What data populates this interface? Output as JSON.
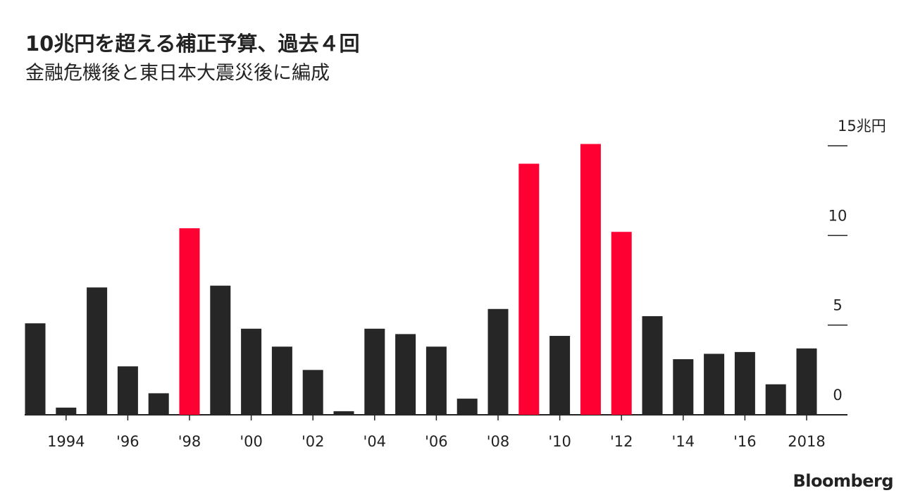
{
  "chart_data": {
    "type": "bar",
    "title": "10兆円を超える補正予算、過去４回",
    "subtitle": "金融危機後と東日本大震災後に編成",
    "categories": [
      null,
      "1994",
      null,
      "'96",
      null,
      "'98",
      null,
      "'00",
      null,
      "'02",
      null,
      "'04",
      null,
      "'06",
      null,
      "'08",
      null,
      "'10",
      null,
      "'12",
      null,
      "'14",
      null,
      "'16",
      null,
      "2018"
    ],
    "values": [
      5.1,
      0.4,
      7.1,
      2.7,
      1.2,
      10.4,
      7.2,
      4.8,
      3.8,
      2.5,
      0.2,
      4.8,
      4.5,
      3.8,
      0.9,
      5.9,
      14.0,
      4.4,
      15.1,
      10.2,
      5.5,
      3.1,
      3.4,
      3.5,
      1.7,
      3.7
    ],
    "colors": [
      "#262626",
      "#262626",
      "#262626",
      "#262626",
      "#262626",
      "#ff0033",
      "#262626",
      "#262626",
      "#262626",
      "#262626",
      "#262626",
      "#262626",
      "#262626",
      "#262626",
      "#262626",
      "#262626",
      "#ff0033",
      "#262626",
      "#ff0033",
      "#ff0033",
      "#262626",
      "#262626",
      "#262626",
      "#262626",
      "#262626",
      "#262626"
    ],
    "ylim": [
      0,
      15
    ],
    "yticks": [
      0,
      5,
      10,
      {
        "value": 15,
        "label": "15兆円"
      }
    ],
    "source": "Bloomberg"
  }
}
